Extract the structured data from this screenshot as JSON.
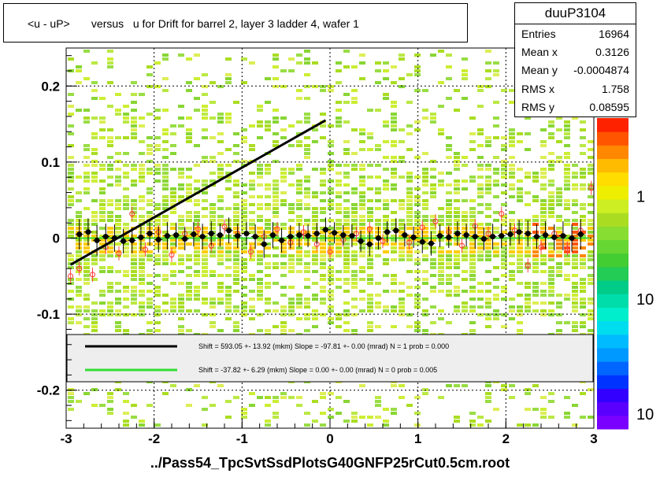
{
  "title": "<u - uP>       versus   u for Drift for barrel 2, layer 3 ladder 4, wafer 1",
  "stats": {
    "name": "duuP3104",
    "rows": [
      {
        "label": "Entries",
        "value": "16964"
      },
      {
        "label": "Mean x",
        "value": "0.3126"
      },
      {
        "label": "Mean y",
        "value": "-0.0004874"
      },
      {
        "label": "RMS x",
        "value": "1.758"
      },
      {
        "label": "RMS y",
        "value": "0.08595"
      }
    ]
  },
  "legend": [
    {
      "text": "Shift =   593.05 +- 13.92 (mkm) Slope =   -97.81 +- 0.00 (mrad)  N = 1 prob = 0.000",
      "color": "#000000"
    },
    {
      "text": "Shift =   -37.82 +- 6.29 (mkm) Slope =    0.00 +- 0.00 (mrad)  N = 0 prob = 0.005",
      "color": "#33dd33"
    }
  ],
  "xtitle": "../Pass54_TpcSvtSsdPlotsG40GNFP25rCut0.5cm.root",
  "chart_data": {
    "type": "scatter",
    "xlim": [
      -3,
      3
    ],
    "ylim": [
      -0.25,
      0.25
    ],
    "x_ticks": [
      "-3",
      "-2",
      "-1",
      "0",
      "1",
      "2",
      "3"
    ],
    "y_ticks": [
      {
        "value": 0.2,
        "label": "0.2"
      },
      {
        "value": 0.1,
        "label": "0.1"
      },
      {
        "value": 0,
        "label": "0"
      },
      {
        "value": -0.1,
        "label": "-0.1"
      },
      {
        "value": -0.2,
        "label": "-0.2"
      }
    ],
    "grid": true,
    "colorbar_labels": [
      {
        "label": "1",
        "frac": 0.27
      },
      {
        "label": "10",
        "frac": 0.6
      },
      {
        "label": "10",
        "frac": 0.97
      }
    ],
    "fit_line": {
      "x": [
        -2.95,
        -0.05
      ],
      "y": [
        -0.035,
        0.155
      ],
      "color": "#000000"
    },
    "zero_line": {
      "x": [
        -2.95,
        2.95
      ],
      "y": [
        0.0,
        0.0
      ],
      "color": "#33dd33"
    },
    "profile_points": {
      "x": [
        -2.85,
        -2.75,
        -2.65,
        -2.55,
        -2.45,
        -2.35,
        -2.25,
        -2.15,
        -2.05,
        -1.95,
        -1.85,
        -1.75,
        -1.65,
        -1.55,
        -1.45,
        -1.35,
        -1.25,
        -1.15,
        -1.05,
        -0.95,
        -0.85,
        -0.75,
        -0.65,
        -0.55,
        -0.45,
        -0.35,
        -0.25,
        -0.15,
        -0.05,
        0.05,
        0.15,
        0.25,
        0.35,
        0.45,
        0.55,
        0.65,
        0.75,
        0.85,
        0.95,
        1.05,
        1.15,
        1.25,
        1.35,
        1.45,
        1.55,
        1.65,
        1.75,
        1.85,
        1.95,
        2.05,
        2.15,
        2.25,
        2.35,
        2.45,
        2.55,
        2.65,
        2.75,
        2.85
      ],
      "y": [
        0.005,
        0.008,
        -0.003,
        0.002,
        0.0,
        -0.004,
        -0.003,
        0.001,
        0.006,
        -0.002,
        0.003,
        0.004,
        -0.001,
        0.005,
        0.002,
        0.006,
        0.004,
        0.01,
        0.003,
        0.006,
        0.002,
        -0.008,
        0.004,
        -0.003,
        0.002,
        0.004,
        0.003,
        0.006,
        0.011,
        0.007,
        0.004,
        0.003,
        -0.004,
        -0.008,
        0.0,
        0.008,
        0.01,
        0.004,
        0.001,
        -0.005,
        -0.007,
        0.003,
        0.001,
        0.006,
        0.004,
        0.002,
        -0.001,
        0.002,
        0.003,
        0.005,
        0.008,
        0.006,
        0.002,
        0.004,
        0.001,
        0.003,
        0.0,
        0.005
      ],
      "err": [
        0.02,
        0.018,
        0.02,
        0.017,
        0.018,
        0.016,
        0.017,
        0.018,
        0.016,
        0.017,
        0.018,
        0.016,
        0.015,
        0.016,
        0.017,
        0.016,
        0.015,
        0.017,
        0.016,
        0.015,
        0.016,
        0.018,
        0.017,
        0.016,
        0.015,
        0.016,
        0.015,
        0.014,
        0.016,
        0.014,
        0.013,
        0.015,
        0.014,
        0.016,
        0.015,
        0.014,
        0.016,
        0.015,
        0.014,
        0.015,
        0.016,
        0.015,
        0.014,
        0.016,
        0.015,
        0.016,
        0.015,
        0.017,
        0.016,
        0.015,
        0.016,
        0.017,
        0.016,
        0.018,
        0.017,
        0.019,
        0.018,
        0.02
      ]
    },
    "open_points": {
      "x": [
        -2.95,
        -2.85,
        -2.7,
        -2.55,
        -2.4,
        -2.25,
        -2.1,
        -1.95,
        -1.8,
        -1.65,
        -1.5,
        -1.35,
        -1.2,
        -1.05,
        -0.9,
        -0.75,
        -0.6,
        -0.45,
        -0.3,
        -0.15,
        0.0,
        0.15,
        0.3,
        0.45,
        0.6,
        0.75,
        0.9,
        1.05,
        1.2,
        1.35,
        1.5,
        1.65,
        1.8,
        1.95,
        2.1,
        2.25,
        2.4,
        2.55,
        2.7,
        2.85,
        2.97
      ],
      "y": [
        -0.05,
        -0.04,
        -0.048,
        -0.012,
        -0.02,
        0.032,
        -0.015,
        0.008,
        -0.022,
        0.006,
        0.012,
        -0.01,
        0.015,
        0.006,
        -0.018,
        0.002,
        0.012,
        -0.006,
        0.008,
        -0.008,
        -0.018,
        -0.002,
        0.006,
        0.012,
        -0.004,
        0.01,
        -0.006,
        0.014,
        0.022,
        0.008,
        -0.01,
        0.016,
        0.006,
        0.032,
        0.01,
        -0.036,
        -0.012,
        0.006,
        -0.014,
        0.01,
        0.066
      ]
    }
  }
}
